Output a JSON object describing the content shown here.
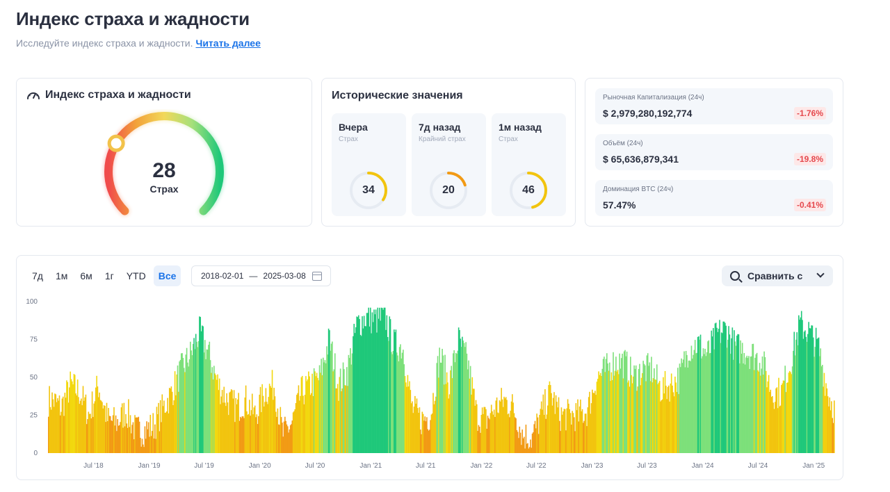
{
  "page": {
    "title": "Индекс страха и жадности",
    "subtitle": "Исследуйте индекс страха и жадности.",
    "read_more": "Читать далее"
  },
  "gauge": {
    "title": "Индекс страха и жадности",
    "icon": "speedometer-icon",
    "value": "28",
    "label": "Страх",
    "fraction": 0.28
  },
  "historical": {
    "title": "Исторические значения",
    "items": [
      {
        "label": "Вчера",
        "sublabel": "Страх",
        "value": "34",
        "color": "#f2c40e"
      },
      {
        "label": "7д назад",
        "sublabel": "Крайний страх",
        "value": "20",
        "color": "#f29a14"
      },
      {
        "label": "1м назад",
        "sublabel": "Страх",
        "value": "46",
        "color": "#f2c40e"
      }
    ]
  },
  "stats": [
    {
      "label": "Рыночная Капитализация (24ч)",
      "value": "$ 2,979,280,192,774",
      "change": "-1.76%"
    },
    {
      "label": "Объём (24ч)",
      "value": "$ 65,636,879,341",
      "change": "-19.8%"
    },
    {
      "label": "Доминация BTC (24ч)",
      "value": "57.47%",
      "change": "-0.41%"
    }
  ],
  "controls": {
    "ranges": [
      "7д",
      "1м",
      "6м",
      "1г",
      "YTD",
      "Все"
    ],
    "active_range": "Все",
    "date_from": "2018-02-01",
    "date_sep": "—",
    "date_to": "2025-03-08",
    "compare_label": "Сравнить с"
  },
  "colors": {
    "extreme_fear": "#f29a14",
    "fear": "#f2c40e",
    "neutral": "#f2d80e",
    "greed": "#7de07a",
    "extreme_greed": "#1fc87a",
    "accent": "#1a73e8",
    "negative": "#e5484d"
  },
  "chart_data": {
    "type": "bar",
    "ylim": [
      0,
      100
    ],
    "y_ticks": [
      "0",
      "25",
      "50",
      "75",
      "100"
    ],
    "x_ticks": [
      "Jul '18",
      "Jan '19",
      "Jul '19",
      "Jan '20",
      "Jul '20",
      "Jan '21",
      "Jul '21",
      "Jan '22",
      "Jul '22",
      "Jan '23",
      "Jul '23",
      "Jan '24",
      "Jul '24",
      "Jan '25"
    ],
    "x_start": "2018-02-01",
    "x_end": "2025-03-08",
    "monthly_values": [
      {
        "x": "2018-02",
        "y": 35
      },
      {
        "x": "2018-03",
        "y": 30
      },
      {
        "x": "2018-04",
        "y": 45
      },
      {
        "x": "2018-05",
        "y": 40
      },
      {
        "x": "2018-06",
        "y": 25
      },
      {
        "x": "2018-07",
        "y": 45
      },
      {
        "x": "2018-08",
        "y": 22
      },
      {
        "x": "2018-09",
        "y": 20
      },
      {
        "x": "2018-10",
        "y": 28
      },
      {
        "x": "2018-11",
        "y": 15
      },
      {
        "x": "2018-12",
        "y": 15
      },
      {
        "x": "2019-01",
        "y": 18
      },
      {
        "x": "2019-02",
        "y": 30
      },
      {
        "x": "2019-03",
        "y": 40
      },
      {
        "x": "2019-04",
        "y": 55
      },
      {
        "x": "2019-05",
        "y": 65
      },
      {
        "x": "2019-06",
        "y": 80
      },
      {
        "x": "2019-07",
        "y": 65
      },
      {
        "x": "2019-08",
        "y": 45
      },
      {
        "x": "2019-09",
        "y": 35
      },
      {
        "x": "2019-10",
        "y": 30
      },
      {
        "x": "2019-11",
        "y": 35
      },
      {
        "x": "2019-12",
        "y": 25
      },
      {
        "x": "2020-01",
        "y": 40
      },
      {
        "x": "2020-02",
        "y": 45
      },
      {
        "x": "2020-03",
        "y": 12
      },
      {
        "x": "2020-04",
        "y": 20
      },
      {
        "x": "2020-05",
        "y": 40
      },
      {
        "x": "2020-06",
        "y": 45
      },
      {
        "x": "2020-07",
        "y": 50
      },
      {
        "x": "2020-08",
        "y": 75
      },
      {
        "x": "2020-09",
        "y": 45
      },
      {
        "x": "2020-10",
        "y": 55
      },
      {
        "x": "2020-11",
        "y": 85
      },
      {
        "x": "2020-12",
        "y": 90
      },
      {
        "x": "2021-01",
        "y": 88
      },
      {
        "x": "2021-02",
        "y": 90
      },
      {
        "x": "2021-03",
        "y": 72
      },
      {
        "x": "2021-04",
        "y": 70
      },
      {
        "x": "2021-05",
        "y": 30
      },
      {
        "x": "2021-06",
        "y": 22
      },
      {
        "x": "2021-07",
        "y": 25
      },
      {
        "x": "2021-08",
        "y": 65
      },
      {
        "x": "2021-09",
        "y": 45
      },
      {
        "x": "2021-10",
        "y": 75
      },
      {
        "x": "2021-11",
        "y": 60
      },
      {
        "x": "2021-12",
        "y": 25
      },
      {
        "x": "2022-01",
        "y": 22
      },
      {
        "x": "2022-02",
        "y": 30
      },
      {
        "x": "2022-03",
        "y": 35
      },
      {
        "x": "2022-04",
        "y": 30
      },
      {
        "x": "2022-05",
        "y": 12
      },
      {
        "x": "2022-06",
        "y": 10
      },
      {
        "x": "2022-07",
        "y": 25
      },
      {
        "x": "2022-08",
        "y": 40
      },
      {
        "x": "2022-09",
        "y": 25
      },
      {
        "x": "2022-10",
        "y": 25
      },
      {
        "x": "2022-11",
        "y": 25
      },
      {
        "x": "2022-12",
        "y": 28
      },
      {
        "x": "2023-01",
        "y": 50
      },
      {
        "x": "2023-02",
        "y": 55
      },
      {
        "x": "2023-03",
        "y": 60
      },
      {
        "x": "2023-04",
        "y": 60
      },
      {
        "x": "2023-05",
        "y": 50
      },
      {
        "x": "2023-06",
        "y": 55
      },
      {
        "x": "2023-07",
        "y": 55
      },
      {
        "x": "2023-08",
        "y": 42
      },
      {
        "x": "2023-09",
        "y": 45
      },
      {
        "x": "2023-10",
        "y": 50
      },
      {
        "x": "2023-11",
        "y": 70
      },
      {
        "x": "2023-12",
        "y": 72
      },
      {
        "x": "2024-01",
        "y": 65
      },
      {
        "x": "2024-02",
        "y": 78
      },
      {
        "x": "2024-03",
        "y": 82
      },
      {
        "x": "2024-04",
        "y": 70
      },
      {
        "x": "2024-05",
        "y": 68
      },
      {
        "x": "2024-06",
        "y": 65
      },
      {
        "x": "2024-07",
        "y": 60
      },
      {
        "x": "2024-08",
        "y": 40
      },
      {
        "x": "2024-09",
        "y": 40
      },
      {
        "x": "2024-10",
        "y": 60
      },
      {
        "x": "2024-11",
        "y": 85
      },
      {
        "x": "2024-12",
        "y": 80
      },
      {
        "x": "2025-01",
        "y": 70
      },
      {
        "x": "2025-02",
        "y": 40
      },
      {
        "x": "2025-03",
        "y": 25
      }
    ]
  }
}
